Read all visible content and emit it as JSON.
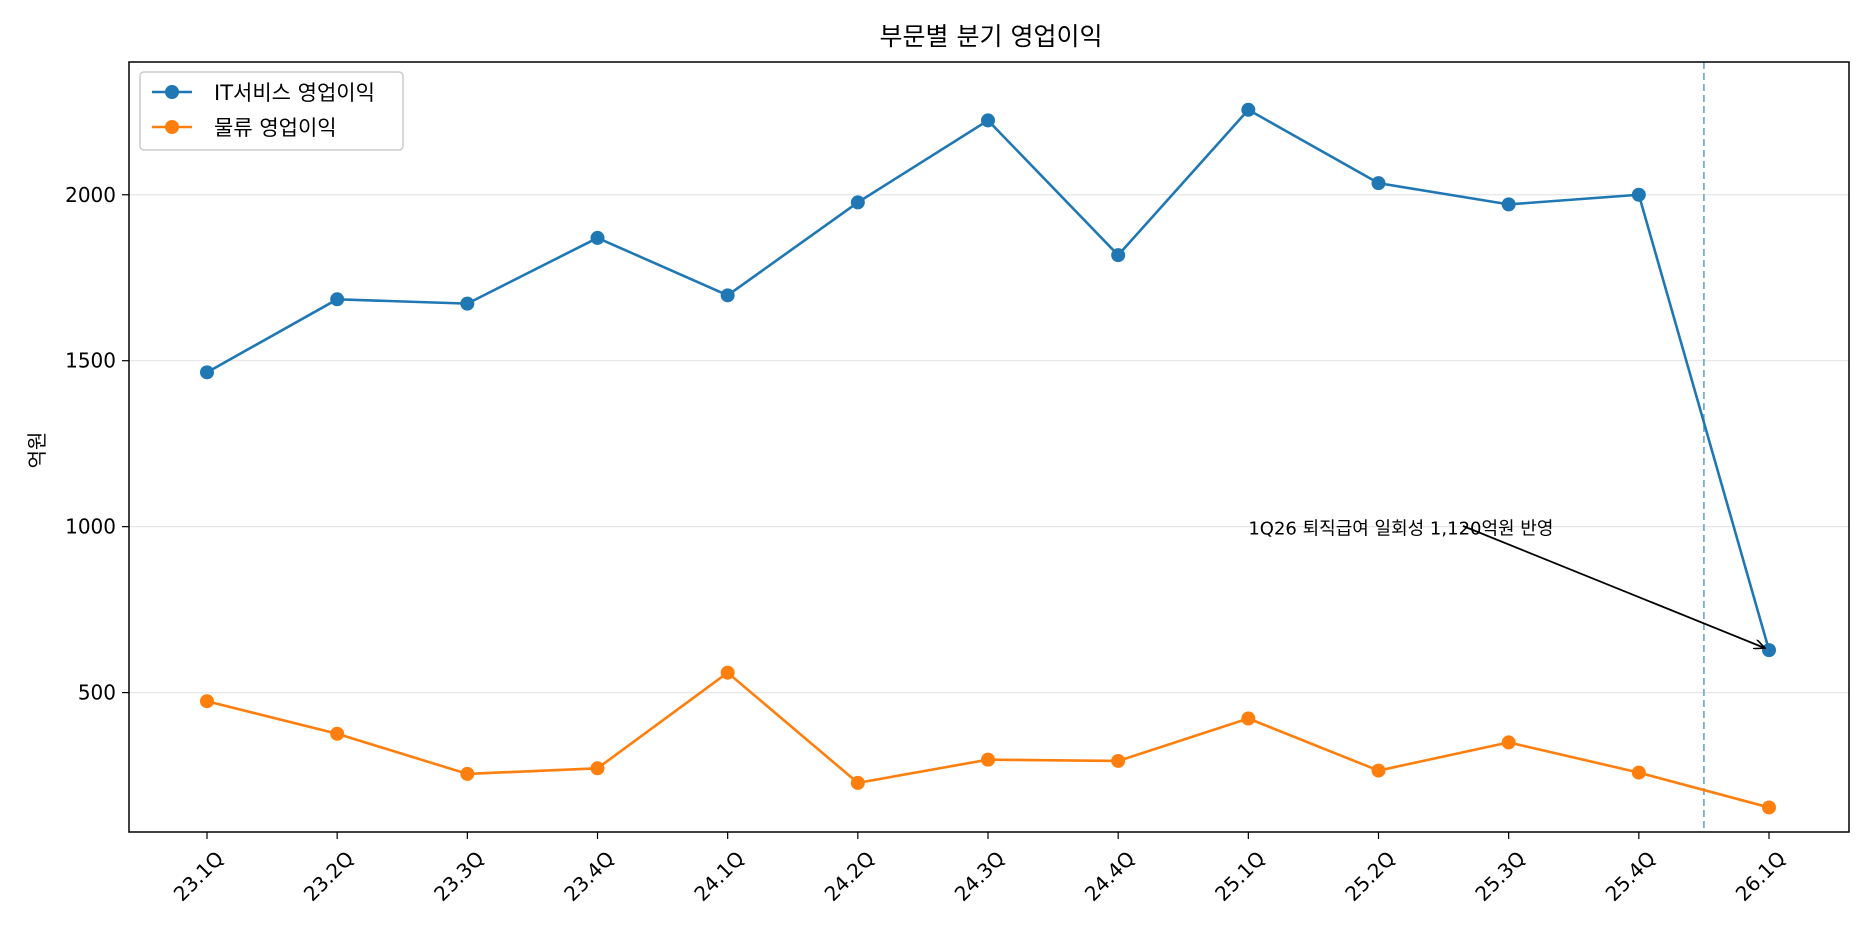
{
  "chart_data": {
    "type": "line",
    "title": "부문별 분기 영업이익",
    "xlabel": "",
    "ylabel": "억원",
    "categories": [
      "23.1Q",
      "23.2Q",
      "23.3Q",
      "23.4Q",
      "24.1Q",
      "24.2Q",
      "24.3Q",
      "24.4Q",
      "25.1Q",
      "25.2Q",
      "25.3Q",
      "25.4Q",
      "26.1Q"
    ],
    "ylim": [
      80,
      2400
    ],
    "yticks": [
      500,
      1000,
      1500,
      2000
    ],
    "grid": "horizontal",
    "legend_position": "top-left",
    "series": [
      {
        "name": "IT서비스 영업이익",
        "color": "#1f77b4",
        "values": [
          1465,
          1685,
          1672,
          1870,
          1697,
          1977,
          2224,
          1818,
          2256,
          2035,
          1971,
          2000,
          628
        ]
      },
      {
        "name": "물류 영업이익",
        "color": "#ff7f0e",
        "values": [
          474,
          376,
          255,
          272,
          560,
          228,
          298,
          294,
          422,
          265,
          350,
          259,
          154
        ]
      }
    ],
    "vline": {
      "x": 11.5,
      "style": "dashed",
      "color": "#6aa3c8"
    },
    "annotation": {
      "text": "1Q26 퇴직급여 일회성 1,120억원 반영",
      "text_x": 8.0,
      "text_y": 1000,
      "arrow_to_x": 12,
      "arrow_to_y": 628
    }
  }
}
